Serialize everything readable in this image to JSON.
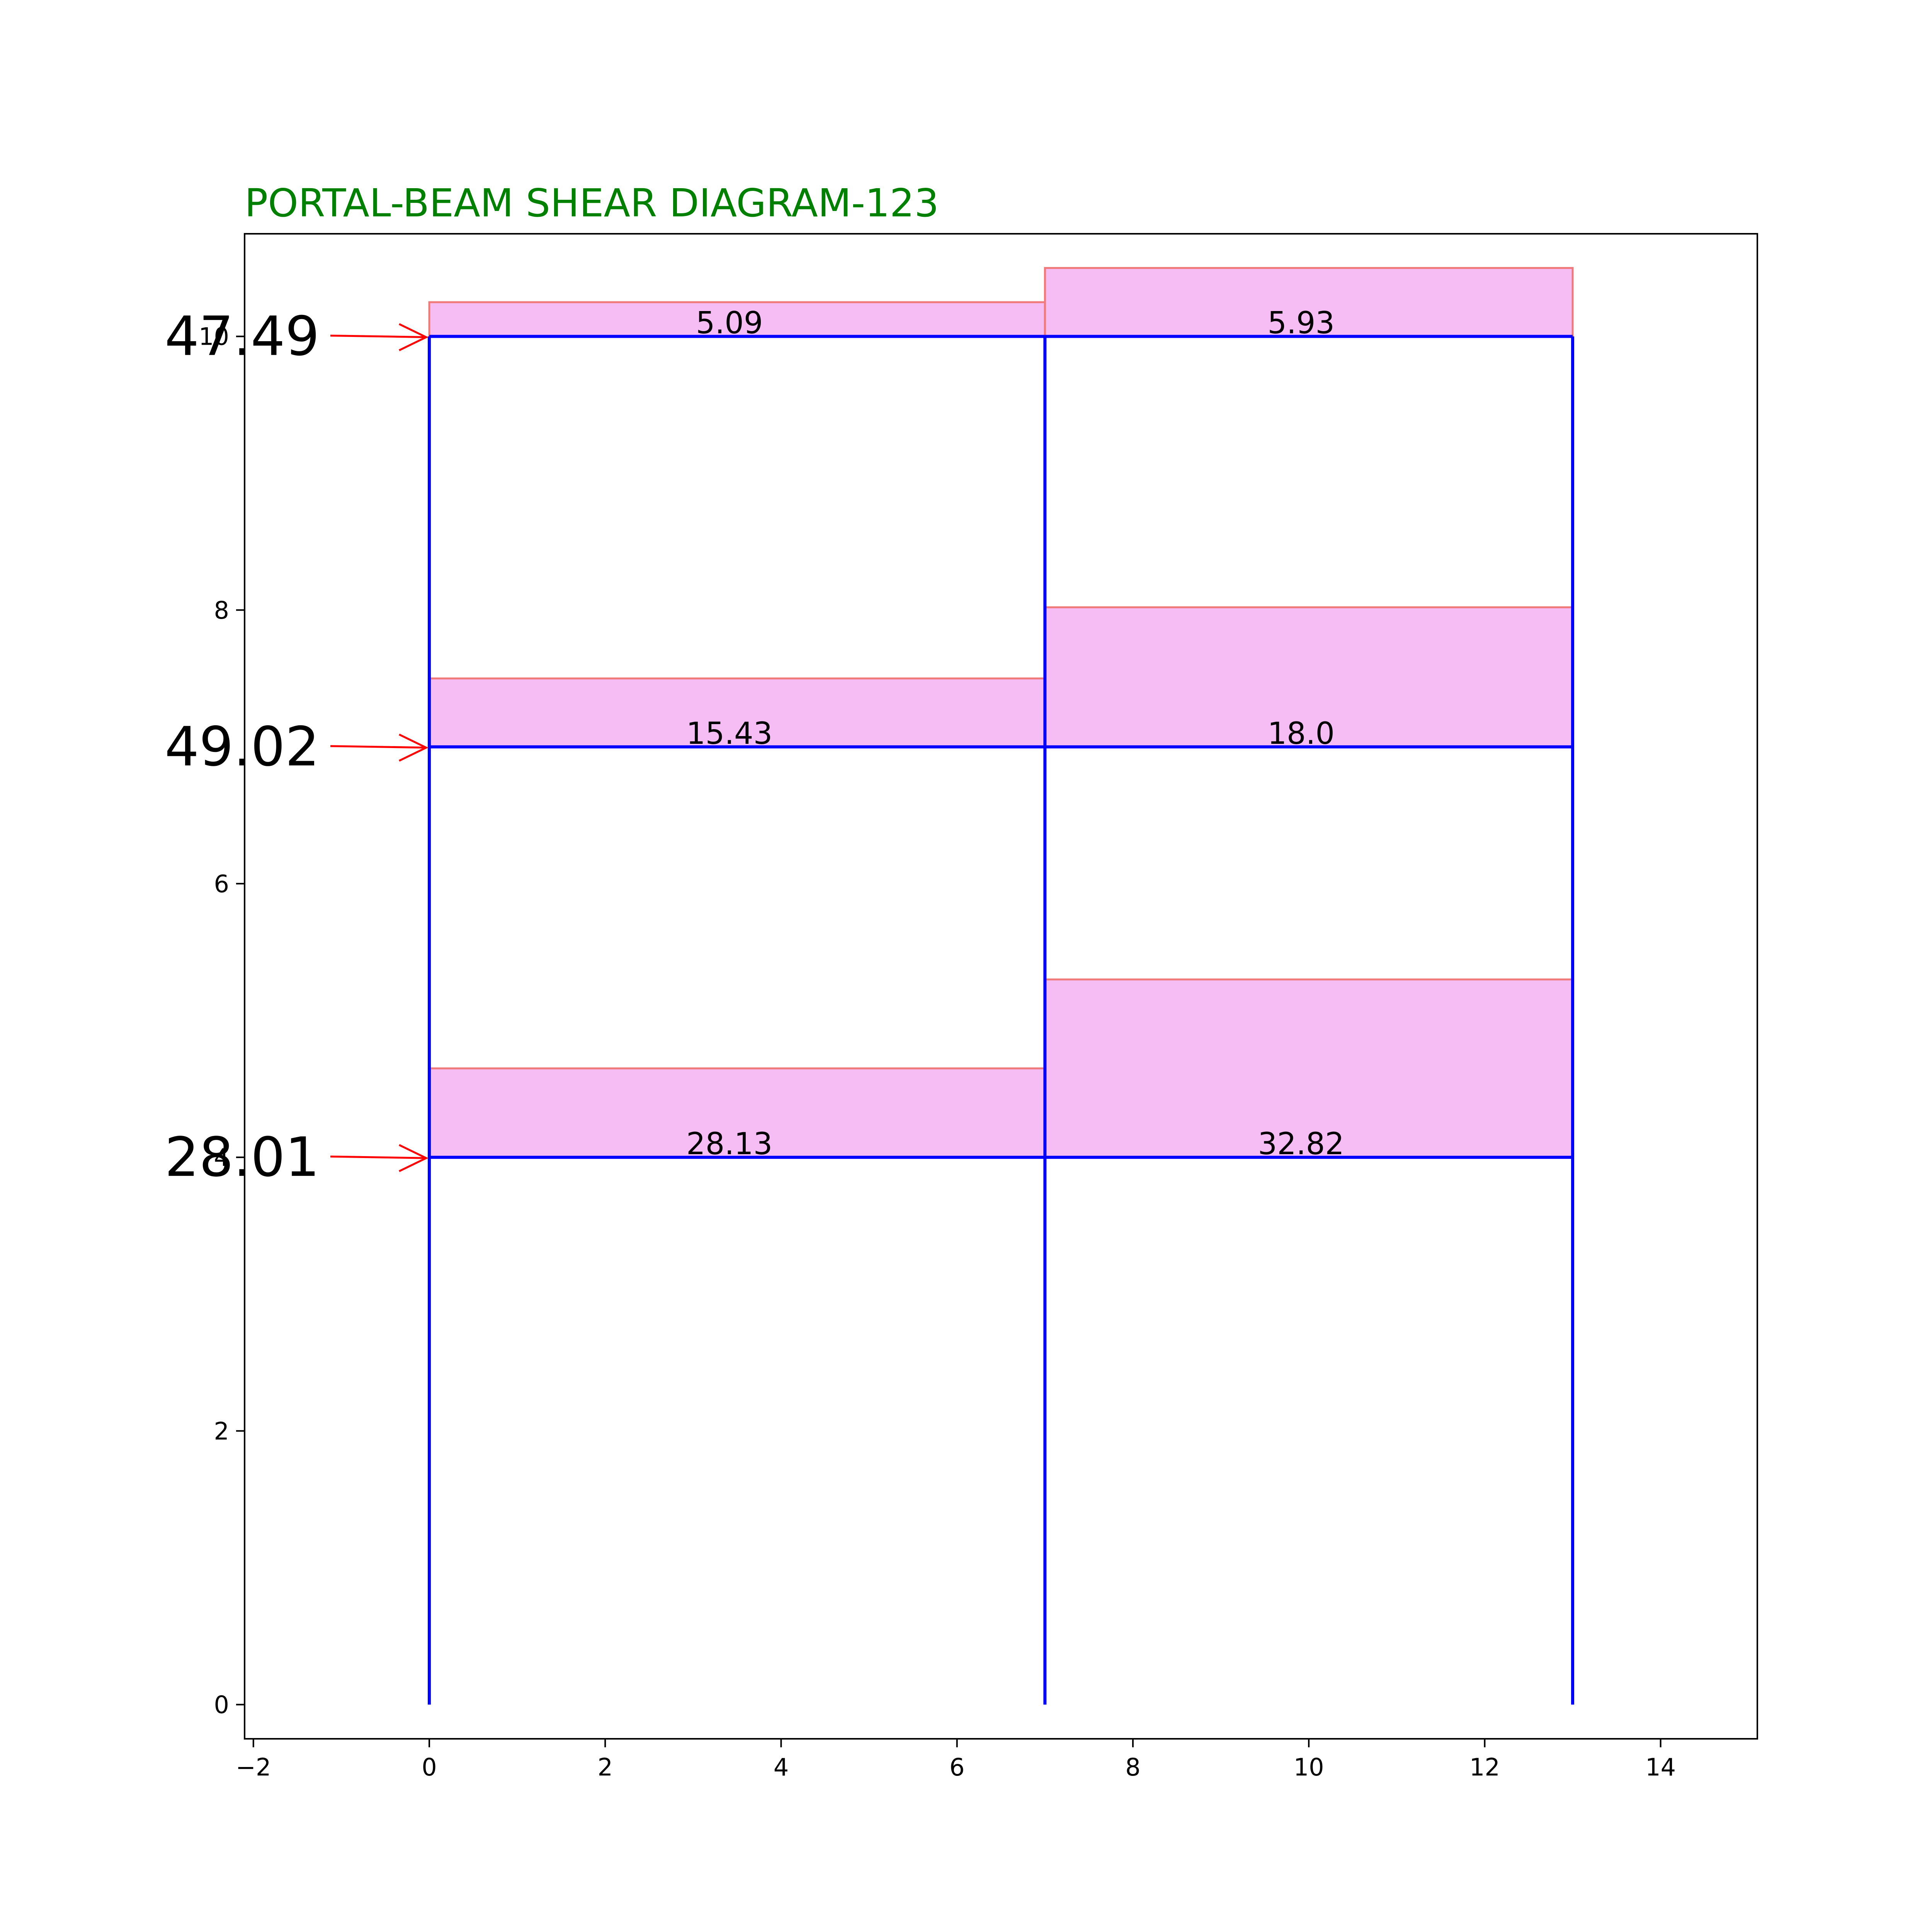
{
  "title": "PORTAL-BEAM SHEAR DIAGRAM-123",
  "colors": {
    "title": "#008000",
    "frame": "#0000ff",
    "shear_fill": "#f5bdf4",
    "shear_edge": "#f07a7a",
    "load_arrow": "#ff0000",
    "axes": "#000000",
    "background": "#ffffff"
  },
  "chart_data": {
    "type": "diagram",
    "xlim": [
      -2.1,
      15.1
    ],
    "ylim": [
      -0.25,
      10.75
    ],
    "x_ticks": [
      -2,
      0,
      2,
      4,
      6,
      8,
      10,
      12,
      14
    ],
    "y_ticks": [
      0,
      2,
      4,
      6,
      8,
      10
    ],
    "grid": false,
    "columns_x": [
      0,
      7,
      13
    ],
    "floor_levels": [
      4,
      7,
      10
    ],
    "column_base": 0,
    "beams": [
      {
        "x0": 0,
        "x1": 7,
        "level": 10,
        "shear_top": 10.25,
        "label": "5.09"
      },
      {
        "x0": 7,
        "x1": 13,
        "level": 10,
        "shear_top": 10.5,
        "label": "5.93"
      },
      {
        "x0": 0,
        "x1": 7,
        "level": 7,
        "shear_top": 7.5,
        "label": "15.43"
      },
      {
        "x0": 7,
        "x1": 13,
        "level": 7,
        "shear_top": 8.02,
        "label": "18.0"
      },
      {
        "x0": 0,
        "x1": 7,
        "level": 4,
        "shear_top": 4.65,
        "label": "28.13"
      },
      {
        "x0": 7,
        "x1": 13,
        "level": 4,
        "shear_top": 5.3,
        "label": "32.82"
      }
    ],
    "lateral_loads": [
      {
        "level": 10,
        "label": "47.49"
      },
      {
        "level": 7,
        "label": "49.02"
      },
      {
        "level": 4,
        "label": "28.01"
      }
    ]
  }
}
